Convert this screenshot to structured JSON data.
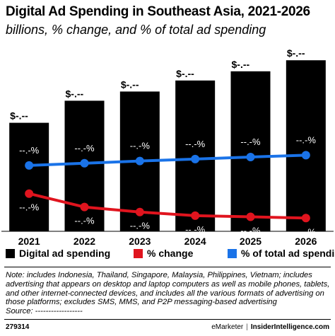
{
  "title": "Digital Ad Spending in Southeast Asia, 2021-2026",
  "subtitle": "billions, % change, and % of total ad spending",
  "chart_data": {
    "type": "bar",
    "categories": [
      "2021",
      "2022",
      "2023",
      "2024",
      "2025",
      "2026"
    ],
    "ylim": [
      0,
      100
    ],
    "series": [
      {
        "name": "Digital ad spending",
        "kind": "bar",
        "color": "#000000",
        "values": [
          59,
          71,
          76,
          82,
          87,
          93
        ],
        "labels": [
          "$-.--",
          "$-.--",
          "$-.--",
          "$-.--",
          "$-.--",
          "$-.--"
        ]
      },
      {
        "name": "% change",
        "kind": "line",
        "color": "#e0141e",
        "values": [
          20.5,
          13.2,
          10.5,
          8.5,
          7.9,
          7.2
        ],
        "labels": [
          "--.-%",
          "--.-%",
          "--.-%",
          "--.-%",
          "--.-%",
          "--.-%"
        ]
      },
      {
        "name": "% of total ad spending",
        "kind": "line",
        "color": "#1a73e8",
        "values": [
          35.8,
          37.0,
          38.2,
          39.3,
          40.4,
          41.4
        ],
        "labels": [
          "--.-%",
          "--.-%",
          "--.-%",
          "--.-%",
          "--.-%",
          "--.-%"
        ]
      }
    ]
  },
  "legend": {
    "items": [
      {
        "label": "Digital ad spending",
        "color": "#000000"
      },
      {
        "label": "% change",
        "color": "#e0141e"
      },
      {
        "label": "% of total ad spending",
        "color": "#1a73e8"
      }
    ]
  },
  "note": {
    "lines": [
      "Note: includes Indonesia, Thailand, Singapore, Malaysia, Philippines, Vietnam; includes",
      "advertising that appears on desktop and laptop computers as well as mobile phones, tablets,",
      "and other internet-connected devices, and includes all the various formats of advertising on",
      "those platforms; excludes SMS, MMS, and P2P messaging-based advertising",
      "Source: ------------------"
    ]
  },
  "footer": {
    "id": "279314",
    "brand": "eMarketer",
    "separator": "|",
    "site": "InsiderIntelligence.com"
  }
}
